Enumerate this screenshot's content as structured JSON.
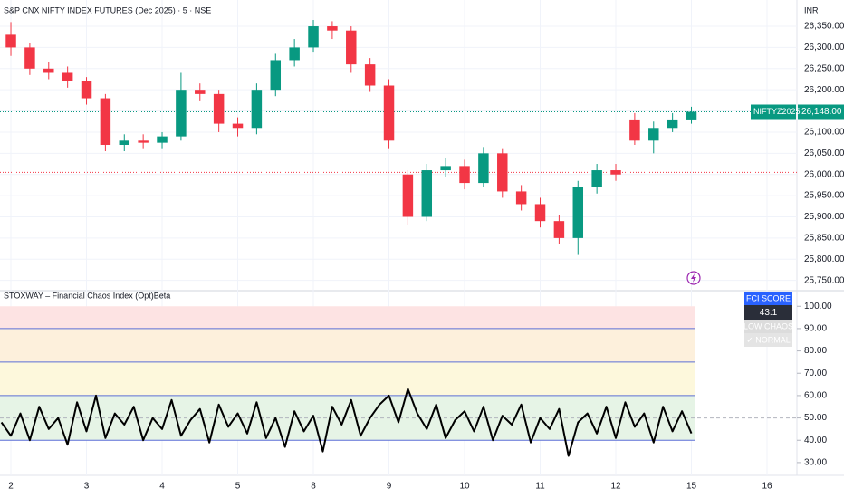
{
  "chart_data": [
    {
      "type": "candlestick",
      "title": "S&P CNX NIFTY INDEX FUTURES (Dec 2025) · 5 · NSE",
      "currency": "INR",
      "up_color": "#089981",
      "down_color": "#f23645",
      "x": [
        0,
        0.25,
        0.5,
        0.75,
        1,
        1.25,
        1.5,
        1.75,
        2,
        2.25,
        2.5,
        2.75,
        3,
        3.25,
        3.5,
        3.75,
        4,
        4.25,
        4.5,
        4.75,
        5,
        5.25,
        5.5,
        5.75,
        6,
        6.25,
        6.5,
        6.75,
        7,
        7.25,
        7.5,
        7.75,
        8,
        8.25,
        8.5,
        8.75,
        9
      ],
      "open": [
        26330,
        26300,
        26250,
        26240,
        26220,
        26180,
        26070,
        26080,
        26075,
        26090,
        26200,
        26190,
        26120,
        26110,
        26200,
        26270,
        26300,
        26350,
        26340,
        26260,
        26210,
        26000,
        25900,
        26010,
        26020,
        25980,
        26050,
        25960,
        25930,
        25890,
        25850,
        25970,
        26010,
        26130,
        26080,
        26110,
        26130
      ],
      "high": [
        26360,
        26310,
        26265,
        26255,
        26230,
        26190,
        26095,
        26095,
        26100,
        26240,
        26215,
        26200,
        26135,
        26215,
        26285,
        26320,
        26365,
        26362,
        26350,
        26275,
        26225,
        26010,
        26025,
        26040,
        26035,
        26065,
        26060,
        25975,
        25945,
        25905,
        25985,
        26025,
        26025,
        26145,
        26125,
        26145,
        26160
      ],
      "low": [
        26280,
        26235,
        26225,
        26205,
        26165,
        26055,
        26055,
        26060,
        26060,
        26080,
        26175,
        26100,
        26090,
        26095,
        26185,
        26255,
        26290,
        26320,
        26240,
        26195,
        26060,
        25880,
        25890,
        25995,
        25965,
        25970,
        25945,
        25915,
        25875,
        25835,
        25810,
        25955,
        25985,
        26070,
        26050,
        26100,
        26120
      ],
      "close": [
        26300,
        26250,
        26240,
        26220,
        26180,
        26070,
        26080,
        26075,
        26090,
        26200,
        26190,
        26120,
        26110,
        26200,
        26270,
        26300,
        26350,
        26340,
        26260,
        26210,
        26080,
        25900,
        26010,
        26020,
        25980,
        26050,
        25960,
        25930,
        25890,
        25850,
        25970,
        26010,
        26000,
        26080,
        26110,
        26130,
        26148
      ],
      "last_price": {
        "value": 26148,
        "label": "26,148.00",
        "symbol": "NIFTYZ2025",
        "color": "#089981"
      },
      "previous_close": {
        "value": 26005,
        "color": "#f23645"
      },
      "xlim": [
        -0.144,
        10.395
      ],
      "xticks": [
        {
          "value": 0,
          "label": "2"
        },
        {
          "value": 1,
          "label": "3"
        },
        {
          "value": 2,
          "label": "4"
        },
        {
          "value": 3,
          "label": "5"
        },
        {
          "value": 4,
          "label": "8"
        },
        {
          "value": 5,
          "label": "9"
        },
        {
          "value": 6,
          "label": "10"
        },
        {
          "value": 7,
          "label": "11"
        },
        {
          "value": 8,
          "label": "12"
        },
        {
          "value": 9,
          "label": "15"
        },
        {
          "value": 10,
          "label": "16"
        }
      ],
      "ylim": [
        25730,
        26380
      ],
      "yticks": [
        {
          "value": 25750,
          "label": "25,750.00"
        },
        {
          "value": 25800,
          "label": "25,800.00"
        },
        {
          "value": 25850,
          "label": "25,850.00"
        },
        {
          "value": 25900,
          "label": "25,900.00"
        },
        {
          "value": 25950,
          "label": "25,950.00"
        },
        {
          "value": 26000,
          "label": "26,000.00"
        },
        {
          "value": 26050,
          "label": "26,050.00"
        },
        {
          "value": 26100,
          "label": "26,100.00"
        },
        {
          "value": 26150,
          "label": "26,150.00"
        },
        {
          "value": 26200,
          "label": "26,200.00"
        },
        {
          "value": 26250,
          "label": "26,250.00"
        },
        {
          "value": 26300,
          "label": "26,300.00"
        },
        {
          "value": 26350,
          "label": "26,350.00"
        }
      ],
      "grid": true
    },
    {
      "type": "line",
      "title": "STOXWAY – Financial Chaos Index (Opt)Beta",
      "series": [
        {
          "color": "#000000",
          "x": [
            -0.125,
            0,
            0.125,
            0.25,
            0.375,
            0.5,
            0.625,
            0.75,
            0.875,
            1,
            1.125,
            1.25,
            1.375,
            1.5,
            1.625,
            1.75,
            1.875,
            2,
            2.125,
            2.25,
            2.375,
            2.5,
            2.625,
            2.75,
            2.875,
            3,
            3.125,
            3.25,
            3.375,
            3.5,
            3.625,
            3.75,
            3.875,
            4,
            4.125,
            4.25,
            4.375,
            4.5,
            4.625,
            4.75,
            4.875,
            5,
            5.125,
            5.25,
            5.375,
            5.5,
            5.625,
            5.75,
            5.875,
            6,
            6.125,
            6.25,
            6.375,
            6.5,
            6.625,
            6.75,
            6.875,
            7,
            7.125,
            7.25,
            7.375,
            7.5,
            7.625,
            7.75,
            7.875,
            8,
            8.125,
            8.25,
            8.375,
            8.5,
            8.625,
            8.75,
            8.875,
            9
          ],
          "values": [
            48,
            42,
            52,
            40,
            55,
            45,
            50,
            38,
            57,
            44,
            60,
            41,
            52,
            47,
            55,
            40,
            50,
            45,
            58,
            42,
            49,
            54,
            39,
            56,
            46,
            52,
            43,
            57,
            41,
            50,
            37,
            53,
            44,
            51,
            35,
            55,
            47,
            58,
            42,
            50,
            56,
            60,
            48,
            63,
            52,
            45,
            56,
            41,
            49,
            53,
            44,
            55,
            40,
            51,
            47,
            56,
            39,
            50,
            45,
            54,
            33,
            48,
            52,
            43,
            55,
            41,
            57,
            46,
            52,
            39,
            55,
            44,
            53,
            43.1
          ]
        }
      ],
      "zones": [
        {
          "range": [
            40,
            60
          ],
          "color": "#e6f4e6"
        },
        {
          "range": [
            60,
            75
          ],
          "color": "#fdf8dc"
        },
        {
          "range": [
            75,
            90
          ],
          "color": "#fdf0dc"
        },
        {
          "range": [
            90,
            100
          ],
          "color": "#fde3e3"
        }
      ],
      "levels": [
        40,
        60,
        75,
        90
      ],
      "level_color": "#5b6fd6",
      "midline": 50,
      "fci_panel": {
        "title": "FCI SCORE",
        "score": 43.1,
        "state": "LOW CHAOS",
        "status": "✓ NORMAL"
      },
      "xlim": [
        -0.144,
        10.395
      ],
      "ylim": [
        25.5,
        107
      ],
      "yticks": [
        {
          "value": 30,
          "label": "30.00"
        },
        {
          "value": 40,
          "label": "40.00"
        },
        {
          "value": 50,
          "label": "50.00"
        },
        {
          "value": 60,
          "label": "60.00"
        },
        {
          "value": 70,
          "label": "70.00"
        },
        {
          "value": 80,
          "label": "80.00"
        },
        {
          "value": 90,
          "label": "90.00"
        },
        {
          "value": 100,
          "label": "100.00"
        }
      ]
    }
  ]
}
